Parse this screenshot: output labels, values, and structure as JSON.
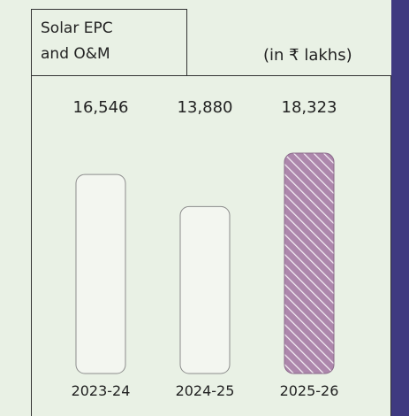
{
  "chart_data": {
    "type": "bar",
    "title": "Solar EPC and O&M",
    "subtitle": "(in ₹ lakhs)",
    "categories": [
      "2023-24",
      "2024-25",
      "2025-26"
    ],
    "values": [
      16546,
      13880,
      18323
    ],
    "value_labels": [
      "16,546",
      "13,880",
      "18,323"
    ],
    "colors": [
      "#f3f6f0",
      "#f3f6f0",
      "#ad87ac"
    ],
    "hatch": [
      false,
      false,
      true
    ]
  }
}
